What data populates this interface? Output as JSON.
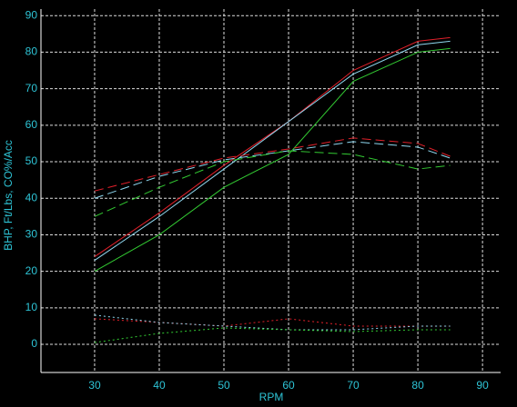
{
  "chart_data": {
    "type": "line",
    "xlabel": "RPM",
    "ylabel": "BHP, Ft/Lbs, CO%/Acc",
    "x": [
      30,
      40,
      50,
      60,
      70,
      80,
      85
    ],
    "xlim": [
      21.7,
      92.8
    ],
    "xticks": [
      30,
      40,
      50,
      60,
      70,
      80,
      90
    ],
    "ylim": [
      -7.7,
      91.8
    ],
    "yticks": [
      0,
      10,
      20,
      30,
      40,
      50,
      60,
      70,
      80,
      90
    ],
    "grid": true,
    "series": [
      {
        "color": "#e0202a",
        "dash": "solid",
        "values": [
          24,
          36,
          49,
          61,
          75,
          83,
          84
        ]
      },
      {
        "color": "#8fd8f0",
        "dash": "solid",
        "values": [
          23,
          35,
          48,
          61,
          74,
          82,
          83
        ]
      },
      {
        "color": "#33cc33",
        "dash": "solid",
        "values": [
          20,
          30,
          43,
          52,
          72,
          80,
          81
        ]
      },
      {
        "color": "#e0202a",
        "dash": "dashed",
        "values": [
          42,
          46.5,
          51,
          53.5,
          56.5,
          55,
          51.5
        ]
      },
      {
        "color": "#8fd8f0",
        "dash": "dashed",
        "values": [
          40,
          46,
          50.5,
          53,
          55.5,
          54,
          51
        ]
      },
      {
        "color": "#33cc33",
        "dash": "dashed",
        "values": [
          35,
          43,
          50,
          53,
          52,
          48,
          49
        ]
      },
      {
        "color": "#e0202a",
        "dash": "dotted",
        "values": [
          7,
          6,
          5,
          7,
          5,
          5,
          5
        ]
      },
      {
        "color": "#8fd8f0",
        "dash": "dotted",
        "values": [
          8,
          6,
          5,
          4,
          4,
          5,
          5
        ]
      },
      {
        "color": "#33cc33",
        "dash": "dotted",
        "values": [
          0.5,
          3,
          4.5,
          4,
          3.5,
          4,
          4
        ]
      }
    ]
  }
}
